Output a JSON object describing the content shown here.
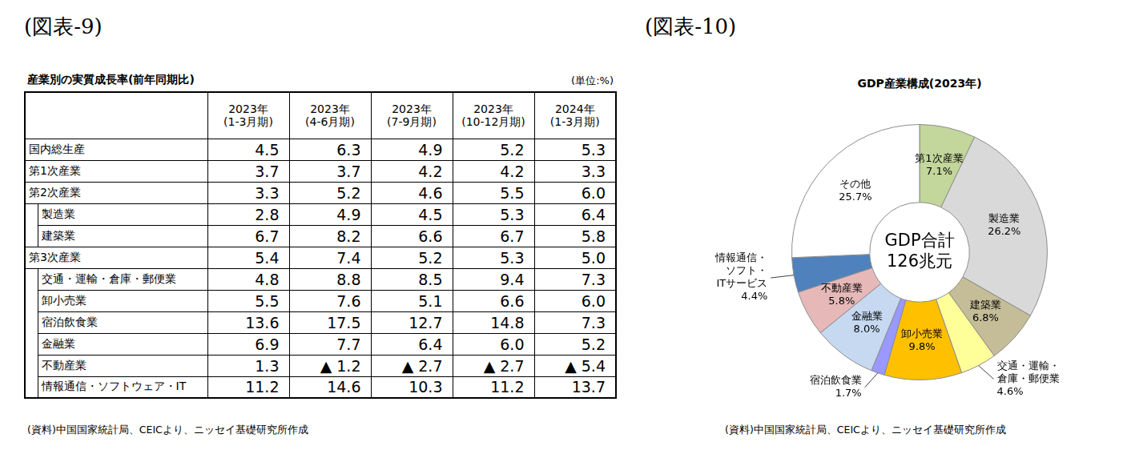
{
  "table_figure": {
    "figure_label": "(図表-9)",
    "title": "産業別の実質成長率(前年同期比)",
    "unit": "(単位:%)",
    "columns": [
      "2023年\n(1-3月期)",
      "2023年\n(4-6月期)",
      "2023年\n(7-9月期)",
      "2023年\n(10-12月期)",
      "2024年\n(1-3月期)"
    ],
    "rows": [
      {
        "label": "国内総生産",
        "values": [
          "4.5",
          "6.3",
          "4.9",
          "5.2",
          "5.3"
        ]
      },
      {
        "label": "第1次産業",
        "values": [
          "3.7",
          "3.7",
          "4.2",
          "4.2",
          "3.3"
        ]
      },
      {
        "label": "第2次産業",
        "values": [
          "3.3",
          "5.2",
          "4.6",
          "5.5",
          "6.0"
        ],
        "children": [
          {
            "label": "製造業",
            "values": [
              "2.8",
              "4.9",
              "4.5",
              "5.3",
              "6.4"
            ]
          },
          {
            "label": "建築業",
            "values": [
              "6.7",
              "8.2",
              "6.6",
              "6.7",
              "5.8"
            ]
          }
        ]
      },
      {
        "label": "第3次産業",
        "values": [
          "5.4",
          "7.4",
          "5.2",
          "5.3",
          "5.0"
        ],
        "children": [
          {
            "label": "交通・運輸・倉庫・郵便業",
            "values": [
              "4.8",
              "8.8",
              "8.5",
              "9.4",
              "7.3"
            ]
          },
          {
            "label": "卸小売業",
            "values": [
              "5.5",
              "7.6",
              "5.1",
              "6.6",
              "6.0"
            ]
          },
          {
            "label": "宿泊飲食業",
            "values": [
              "13.6",
              "17.5",
              "12.7",
              "14.8",
              "7.3"
            ]
          },
          {
            "label": "金融業",
            "values": [
              "6.9",
              "7.7",
              "6.4",
              "6.0",
              "5.2"
            ]
          },
          {
            "label": "不動産業",
            "values": [
              "1.3",
              "▲ 1.2",
              "▲ 2.7",
              "▲ 2.7",
              "▲ 5.4"
            ]
          },
          {
            "label": "情報通信・ソフトウェア・IT",
            "values": [
              "11.2",
              "14.6",
              "10.3",
              "11.2",
              "13.7"
            ]
          }
        ]
      }
    ],
    "source": "(資料)中国国家統計局、CEICより、ニッセイ基礎研究所作成"
  },
  "chart_data": {
    "type": "doughnut",
    "figure_label": "(図表-10)",
    "title": "GDP産業構成(2023年)",
    "center_text": [
      "GDP合計",
      "126兆元"
    ],
    "categories": [
      "第1次産業",
      "製造業",
      "建築業",
      "交通・運輸・\n倉庫・郵便業",
      "卸小売業",
      "宿泊飲食業",
      "金融業",
      "不動産業",
      "情報通信・\nソフト・\nITサービス",
      "その他"
    ],
    "values": [
      7.1,
      26.2,
      6.8,
      4.6,
      9.8,
      1.7,
      8.0,
      5.8,
      4.4,
      25.7
    ],
    "value_labels": [
      "7.1%",
      "26.2%",
      "6.8%",
      "4.6%",
      "9.8%",
      "1.7%",
      "8.0%",
      "5.8%",
      "4.4%",
      "25.7%"
    ],
    "colors": [
      "#c3d69b",
      "#d9d9d9",
      "#c4bd97",
      "#ffff99",
      "#ffc000",
      "#9999ff",
      "#c6d9f1",
      "#e6b9b8",
      "#4f81bd",
      "#ffffff"
    ],
    "data_labels": true,
    "source": "(資料)中国国家統計局、CEICより、ニッセイ基礎研究所作成"
  }
}
